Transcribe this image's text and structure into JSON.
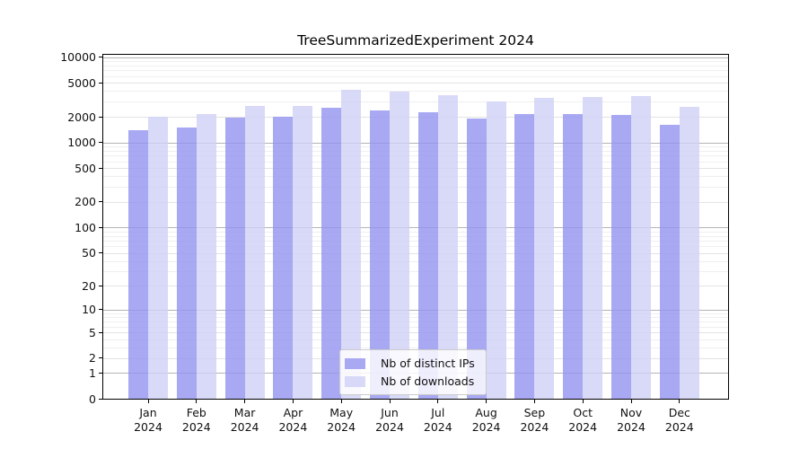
{
  "title": "TreeSummarizedExperiment 2024",
  "colors": {
    "distinct_ips_bar": "rgba(148,148,240,0.8)",
    "downloads_bar": "rgba(208,208,246,0.8)",
    "grid_major": "#b4b4b4",
    "grid_labeled_minor": "#e3e3e3",
    "grid_minor": "#efefef",
    "spine": "#000000",
    "text": "#111111",
    "legend_border": "#cccccc",
    "legend_background": "rgba(255,255,255,0.8)"
  },
  "chart_data": {
    "type": "bar",
    "title": "TreeSummarizedExperiment 2024",
    "categories": [
      "Jan 2024",
      "Feb 2024",
      "Mar 2024",
      "Apr 2024",
      "May 2024",
      "Jun 2024",
      "Jul 2024",
      "Aug 2024",
      "Sep 2024",
      "Oct 2024",
      "Nov 2024",
      "Dec 2024"
    ],
    "series": [
      {
        "name": "Nb of distinct IPs",
        "color": "rgba(148,148,240,0.8)",
        "values": [
          1400,
          1510,
          1970,
          2000,
          2560,
          2390,
          2260,
          1920,
          2140,
          2150,
          2120,
          1630
        ]
      },
      {
        "name": "Nb of downloads",
        "color": "rgba(208,208,246,0.8)",
        "values": [
          2000,
          2170,
          2660,
          2700,
          4150,
          3980,
          3610,
          3000,
          3330,
          3440,
          3520,
          2600
        ]
      }
    ],
    "xlabel": "",
    "ylabel": "",
    "y_scale": "log1p",
    "y_ticks": [
      0,
      1,
      2,
      5,
      10,
      20,
      50,
      100,
      200,
      500,
      1000,
      2000,
      5000,
      10000
    ],
    "ylim": [
      0,
      10600
    ],
    "grid": true,
    "legend_position": "lower center"
  }
}
